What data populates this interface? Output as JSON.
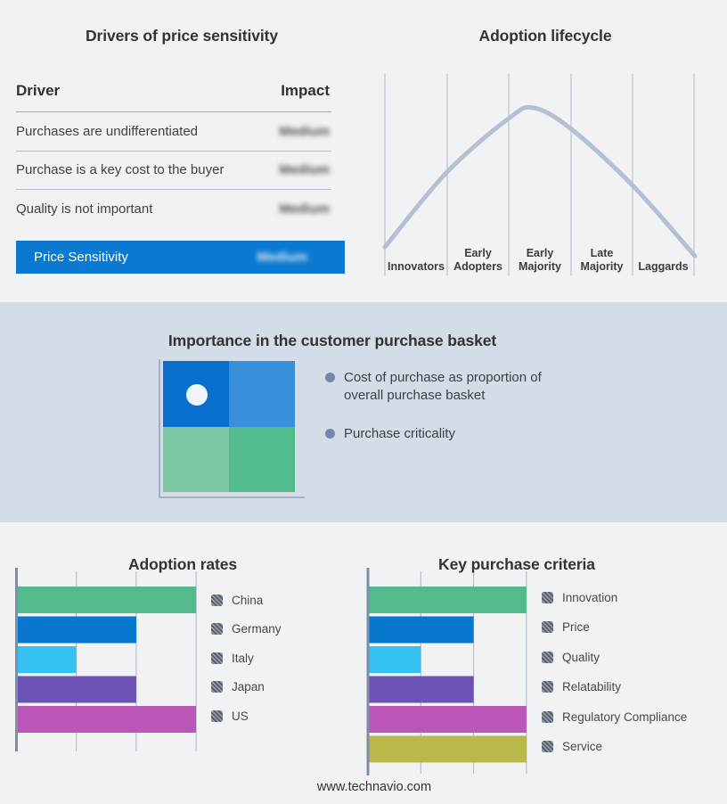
{
  "drivers": {
    "title": "Drivers of price sensitivity",
    "columns": {
      "driver": "Driver",
      "impact": "Impact"
    },
    "rows": [
      {
        "driver": "Purchases are undifferentiated",
        "impact": "Medium"
      },
      {
        "driver": "Purchase is a key cost to the buyer",
        "impact": "Medium"
      },
      {
        "driver": "Quality is not important",
        "impact": "Medium"
      }
    ],
    "summary": {
      "label": "Price Sensitivity",
      "impact": "Medium"
    },
    "accent_color": "#0b79d0",
    "impact_values_blurred": true
  },
  "lifecycle": {
    "title": "Adoption lifecycle",
    "stages": [
      "Innovators",
      "Early Adopters",
      "Early Majority",
      "Late Majority",
      "Laggards"
    ],
    "curve_color": "#b4c1d3",
    "gridline_color": "#aeb9cb"
  },
  "basket": {
    "title": "Importance in the customer purchase basket",
    "bullets": [
      "Cost of purchase as proportion of overall purchase basket",
      "Purchase criticality"
    ],
    "band_color": "#d3dce7",
    "quadrant_colors": {
      "top_left": "#0a70cd",
      "top_right": "#3990da",
      "bottom_left": "#7dc6a4",
      "bottom_right": "#52bb8c"
    }
  },
  "footer": {
    "url": "www.technavio.com"
  },
  "chart_data": [
    {
      "type": "bar",
      "orientation": "horizontal",
      "title": "Adoption rates",
      "categories": [
        "China",
        "Germany",
        "Italy",
        "Japan",
        "US"
      ],
      "values": [
        3,
        2,
        1,
        2,
        3
      ],
      "colors": [
        "#52ba8c",
        "#0778ce",
        "#36c1f3",
        "#6b52b4",
        "#bb55b8"
      ],
      "xlim": [
        0,
        3
      ],
      "gridlines": [
        1,
        2,
        3
      ],
      "tick_labels_shown": false,
      "legend_position": "right",
      "legend_marker": "gray-hatched-square"
    },
    {
      "type": "bar",
      "orientation": "horizontal",
      "title": "Key purchase criteria",
      "categories": [
        "Innovation",
        "Price",
        "Quality",
        "Relatability",
        "Regulatory Compliance",
        "Service"
      ],
      "values": [
        3,
        2,
        1,
        2,
        3,
        3
      ],
      "colors": [
        "#52ba8c",
        "#0778ce",
        "#36c1f3",
        "#6b52b4",
        "#bb55b8",
        "#b9b84b"
      ],
      "xlim": [
        0,
        3
      ],
      "gridlines": [
        1,
        2,
        3
      ],
      "tick_labels_shown": false,
      "legend_position": "right",
      "legend_marker": "gray-hatched-square"
    },
    {
      "type": "line",
      "title": "Adoption lifecycle",
      "x_stages": [
        "Innovators",
        "Early Adopters",
        "Early Majority",
        "Late Majority",
        "Laggards"
      ],
      "curve_points": [
        [
          0,
          0.07
        ],
        [
          0.2,
          0.57
        ],
        [
          0.4,
          0.93
        ],
        [
          0.48,
          1.0
        ],
        [
          0.6,
          0.86
        ],
        [
          0.8,
          0.48
        ],
        [
          1.0,
          0.01
        ]
      ],
      "note": "conceptual bell curve, no numeric axes"
    }
  ]
}
